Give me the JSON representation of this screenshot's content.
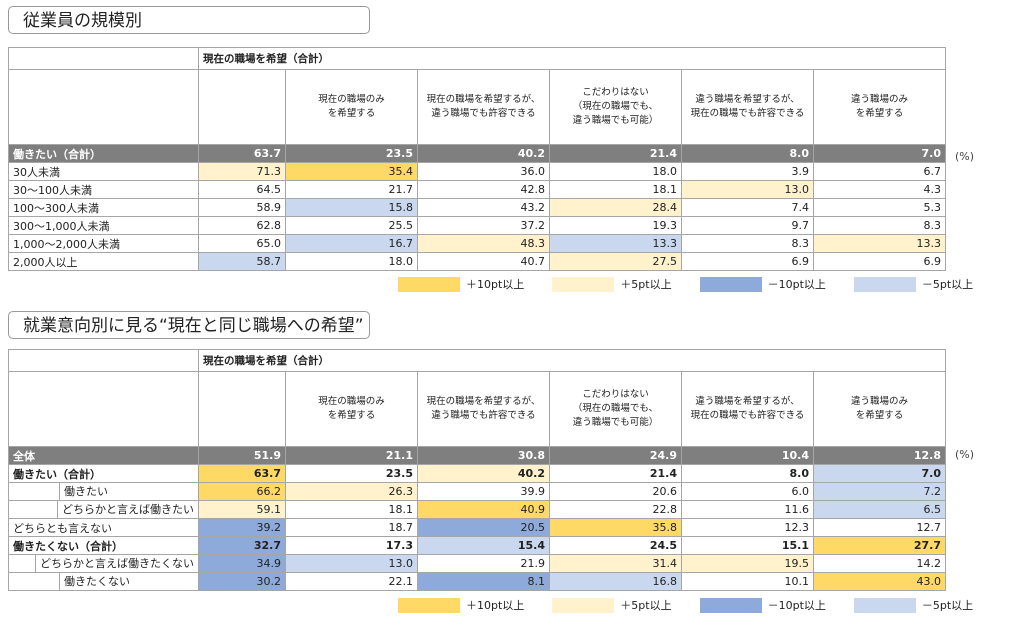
{
  "section1": {
    "title": "従業員の規模別",
    "header_title": "現在の職場を希望（合計）",
    "columns": [
      "現在の職場のみ\nを希望する",
      "現在の職場を希望するが、\n違う職場でも許容できる",
      "こだわりはない\n（現在の職場でも、\n違う職場でも可能）",
      "違う職場を希望するが、\n現在の職場でも許容できる",
      "違う職場のみ\nを希望する"
    ],
    "total": {
      "label": "働きたい（合計）",
      "values": [
        "63.7",
        "23.5",
        "40.2",
        "21.4",
        "8.0",
        "7.0"
      ]
    },
    "rows": [
      {
        "label": "30人未満",
        "values": [
          "71.3",
          "35.4",
          "36.0",
          "18.0",
          "3.9",
          "6.7"
        ],
        "shade": [
          "y5",
          "y10",
          "",
          "",
          "",
          ""
        ]
      },
      {
        "label": "30～100人未満",
        "values": [
          "64.5",
          "21.7",
          "42.8",
          "18.1",
          "13.0",
          "4.3"
        ],
        "shade": [
          "",
          "",
          "",
          "",
          "y5",
          ""
        ]
      },
      {
        "label": "100～300人未満",
        "values": [
          "58.9",
          "15.8",
          "43.2",
          "28.4",
          "7.4",
          "5.3"
        ],
        "shade": [
          "",
          "b5",
          "",
          "y5",
          "",
          ""
        ]
      },
      {
        "label": "300～1,000人未満",
        "values": [
          "62.8",
          "25.5",
          "37.2",
          "19.3",
          "9.7",
          "8.3"
        ],
        "shade": [
          "",
          "",
          "",
          "",
          "",
          ""
        ]
      },
      {
        "label": "1,000～2,000人未満",
        "values": [
          "65.0",
          "16.7",
          "48.3",
          "13.3",
          "8.3",
          "13.3"
        ],
        "shade": [
          "",
          "b5",
          "y5",
          "b5",
          "",
          "y5"
        ]
      },
      {
        "label": "2,000人以上",
        "values": [
          "58.7",
          "18.0",
          "40.7",
          "27.5",
          "6.9",
          "6.9"
        ],
        "shade": [
          "b5",
          "",
          "",
          "y5",
          "",
          ""
        ]
      }
    ],
    "unit": "(%)"
  },
  "section2": {
    "title": "就業意向別に見る“現在と同じ職場への希望”",
    "header_title": "現在の職場を希望（合計）",
    "columns": [
      "現在の職場のみ\nを希望する",
      "現在の職場を希望するが、\n違う職場でも許容できる",
      "こだわりはない\n（現在の職場でも、\n違う職場でも可能）",
      "違う職場を希望するが、\n現在の職場でも許容できる",
      "違う職場のみ\nを希望する"
    ],
    "total": {
      "label": "全体",
      "values": [
        "51.9",
        "21.1",
        "30.8",
        "24.9",
        "10.4",
        "12.8"
      ]
    },
    "rows": [
      {
        "label": "働きたい（合計）",
        "level": 0,
        "bold": true,
        "values": [
          "63.7",
          "23.5",
          "40.2",
          "21.4",
          "8.0",
          "7.0"
        ],
        "shade": [
          "y10",
          "",
          "y5",
          "",
          "",
          "b5"
        ]
      },
      {
        "label": "働きたい",
        "level": 1,
        "bold": false,
        "values": [
          "66.2",
          "26.3",
          "39.9",
          "20.6",
          "6.0",
          "7.2"
        ],
        "shade": [
          "y10",
          "y5",
          "",
          "",
          "",
          "b5"
        ]
      },
      {
        "label": "どちらかと言えば働きたい",
        "level": 1,
        "bold": false,
        "values": [
          "59.1",
          "18.1",
          "40.9",
          "22.8",
          "11.6",
          "6.5"
        ],
        "shade": [
          "y5",
          "",
          "y10",
          "",
          "",
          "b5"
        ]
      },
      {
        "label": "どちらとも言えない",
        "level": 0,
        "bold": false,
        "values": [
          "39.2",
          "18.7",
          "20.5",
          "35.8",
          "12.3",
          "12.7"
        ],
        "shade": [
          "b10",
          "",
          "b10",
          "y10",
          "",
          ""
        ]
      },
      {
        "label": "働きたくない（合計）",
        "level": 0,
        "bold": true,
        "values": [
          "32.7",
          "17.3",
          "15.4",
          "24.5",
          "15.1",
          "27.7"
        ],
        "shade": [
          "b10",
          "",
          "b5",
          "",
          "",
          "y10"
        ]
      },
      {
        "label": "どちらかと言えば働きたくない",
        "level": 1,
        "bold": false,
        "values": [
          "34.9",
          "13.0",
          "21.9",
          "31.4",
          "19.5",
          "14.2"
        ],
        "shade": [
          "b10",
          "b5",
          "",
          "y5",
          "y5",
          ""
        ]
      },
      {
        "label": "働きたくない",
        "level": 1,
        "bold": false,
        "values": [
          "30.2",
          "22.1",
          "8.1",
          "16.8",
          "10.1",
          "43.0"
        ],
        "shade": [
          "b10",
          "",
          "b10",
          "b5",
          "",
          "y10"
        ]
      }
    ],
    "unit": "(%)"
  },
  "legend": [
    {
      "key": "y10",
      "label": "＋10pt以上"
    },
    {
      "key": "y5",
      "label": "＋5pt以上"
    },
    {
      "key": "b10",
      "label": "－10pt以上"
    },
    {
      "key": "b5",
      "label": "－5pt以上"
    }
  ]
}
